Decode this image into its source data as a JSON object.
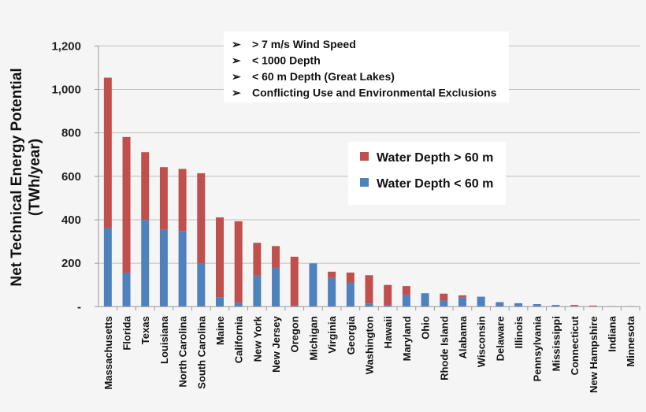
{
  "chart_data": {
    "type": "bar",
    "stacked": true,
    "ylabel_lines": [
      "Net Technical Energy Potential",
      "(TWh/year)"
    ],
    "ylim": [
      0,
      1200
    ],
    "yticks": [
      0,
      200,
      400,
      600,
      800,
      1000,
      1200
    ],
    "ytick_labels": [
      "-",
      "200",
      "400",
      "600",
      "800",
      "1,000",
      "1,200"
    ],
    "grid": true,
    "legend_placement": "center-right",
    "categories": [
      "Massachusetts",
      "Florida",
      "Texas",
      "Louisiana",
      "North Carolina",
      "South Carolina",
      "Maine",
      "California",
      "New York",
      "New Jersey",
      "Oregon",
      "Michigan",
      "Virginia",
      "Georgia",
      "Washington",
      "Hawaii",
      "Maryland",
      "Ohio",
      "Rhode Island",
      "Alabama",
      "Wisconsin",
      "Delaware",
      "Illinois",
      "Pennsylvania",
      "Mississippi",
      "Connecticut",
      "New Hampshire",
      "Indiana",
      "Minnesota"
    ],
    "series": [
      {
        "name": "Water Depth < 60 m",
        "color": "#4f81bd",
        "values": [
          362,
          155,
          399,
          354,
          348,
          199,
          44,
          18,
          143,
          179,
          5,
          199,
          133,
          110,
          15,
          7,
          54,
          62,
          28,
          42,
          46,
          21,
          16,
          12,
          8,
          4,
          0,
          2,
          2
        ]
      },
      {
        "name": "Water Depth > 60 m",
        "color": "#c0504d",
        "values": [
          692,
          626,
          312,
          288,
          286,
          415,
          367,
          375,
          151,
          100,
          225,
          0,
          28,
          47,
          130,
          93,
          41,
          0,
          32,
          10,
          0,
          0,
          0,
          0,
          0,
          4,
          5,
          0,
          0
        ]
      }
    ],
    "legend_order": [
      1,
      0
    ],
    "annotations": [
      "> 7 m/s Wind Speed",
      "< 1000 Depth",
      "< 60 m Depth (Great Lakes)",
      "Conflicting Use and Environmental Exclusions"
    ]
  }
}
